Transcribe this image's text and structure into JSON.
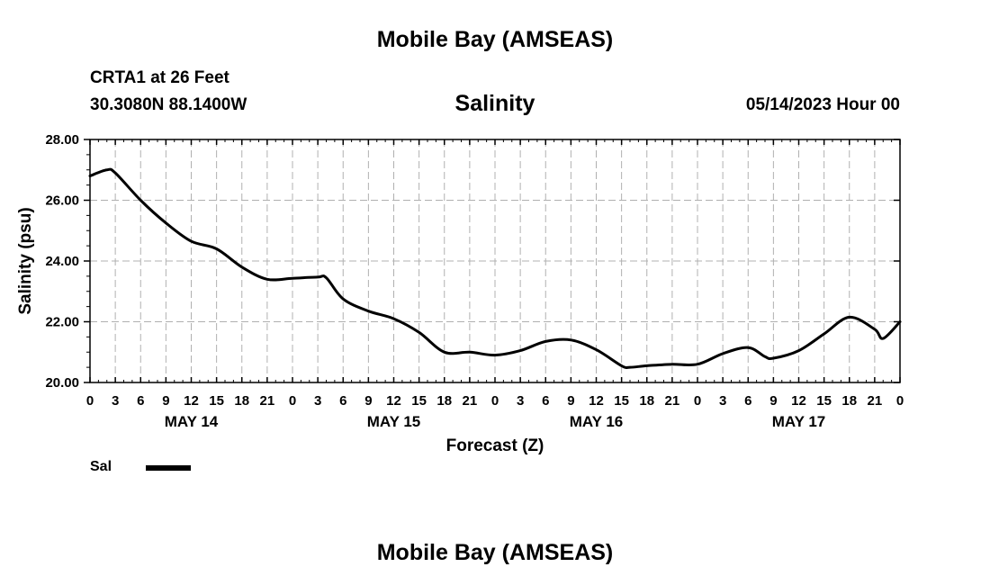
{
  "header": {
    "title": "Mobile Bay (AMSEAS)",
    "station": "CRTA1 at 26 Feet",
    "coordinates": "30.3080N  88.1400W",
    "variable": "Salinity",
    "forecast_time": "05/14/2023 Hour 00"
  },
  "footer": {
    "title": "Mobile Bay (AMSEAS)"
  },
  "legend": {
    "label": "Sal",
    "color": "#000000"
  },
  "chart_data": {
    "type": "line",
    "title": "Salinity",
    "xlabel": "Forecast (Z)",
    "ylabel": "Salinity (psu)",
    "x_unit": "hours since 05/14/2023 00Z",
    "xlim": [
      0,
      96
    ],
    "ylim": [
      20,
      28
    ],
    "y_ticks": [
      "20.00",
      "22.00",
      "24.00",
      "26.00",
      "28.00"
    ],
    "x_tick_labels": [
      "0",
      "3",
      "6",
      "9",
      "12",
      "15",
      "18",
      "21",
      "0",
      "3",
      "6",
      "9",
      "12",
      "15",
      "18",
      "21",
      "0",
      "3",
      "6",
      "9",
      "12",
      "15",
      "18",
      "21",
      "0",
      "3",
      "6",
      "9",
      "12",
      "15",
      "18",
      "21",
      "0"
    ],
    "date_labels": [
      {
        "hour": 12,
        "label": "MAY 14"
      },
      {
        "hour": 36,
        "label": "MAY 15"
      },
      {
        "hour": 60,
        "label": "MAY 16"
      },
      {
        "hour": 84,
        "label": "MAY 17"
      }
    ],
    "grid": true,
    "legend_position": "bottom-left",
    "series": [
      {
        "name": "Sal",
        "color": "#000000",
        "x": [
          0,
          2,
          3,
          6,
          9,
          12,
          15,
          18,
          21,
          24,
          27,
          28,
          30,
          33,
          36,
          39,
          42,
          45,
          48,
          51,
          54,
          57,
          60,
          63,
          64,
          66,
          69,
          72,
          75,
          78,
          80,
          81,
          84,
          87,
          90,
          93,
          94,
          96
        ],
        "y": [
          26.8,
          27.0,
          26.9,
          26.0,
          25.25,
          24.65,
          24.4,
          23.8,
          23.4,
          23.43,
          23.47,
          23.45,
          22.75,
          22.35,
          22.1,
          21.65,
          21.0,
          21.0,
          20.9,
          21.05,
          21.35,
          21.4,
          21.08,
          20.55,
          20.5,
          20.55,
          20.6,
          20.6,
          20.95,
          21.15,
          20.85,
          20.8,
          21.05,
          21.6,
          22.15,
          21.75,
          21.45,
          22.0
        ]
      }
    ]
  }
}
